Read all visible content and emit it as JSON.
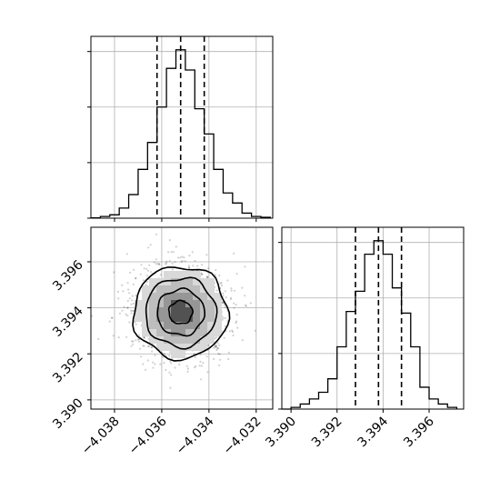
{
  "chart_data": {
    "type": "corner",
    "title": "",
    "grid": true,
    "parameters": [
      {
        "name": "",
        "xlim": [
          -4.039,
          -4.0313
        ],
        "quantiles": [
          -4.0362,
          -4.0352,
          -4.0342
        ]
      },
      {
        "name": "",
        "xlim": [
          3.3896,
          3.3975
        ],
        "quantiles": [
          3.3928,
          3.3938,
          3.3948
        ]
      }
    ],
    "x_ticks": [
      -4.038,
      -4.036,
      -4.034,
      -4.032
    ],
    "y_ticks_2d": [
      3.39,
      3.392,
      3.394,
      3.396
    ],
    "x2_ticks": [
      3.39,
      3.392,
      3.394,
      3.396
    ],
    "hist1": {
      "bin_edges": [
        -4.039,
        -4.0386,
        -4.0382,
        -4.0378,
        -4.0374,
        -4.037,
        -4.0366,
        -4.0362,
        -4.0358,
        -4.0354,
        -4.035,
        -4.0346,
        -4.0342,
        -4.0338,
        -4.0334,
        -4.033,
        -4.0326,
        -4.0322,
        -4.0318,
        -4.0314
      ],
      "values": [
        0.2,
        1,
        2,
        6,
        14,
        29,
        45,
        66,
        89,
        100,
        88,
        65,
        50,
        29,
        15,
        9,
        3,
        1,
        0.5
      ],
      "ylim": [
        0,
        108
      ],
      "yticks": [
        0,
        33,
        66,
        99
      ]
    },
    "hist2": {
      "bin_edges": [
        3.3896,
        3.39,
        3.3904,
        3.3908,
        3.3912,
        3.3916,
        3.392,
        3.3924,
        3.3928,
        3.3932,
        3.3936,
        3.394,
        3.3944,
        3.3948,
        3.3952,
        3.3956,
        3.396,
        3.3964,
        3.3968,
        3.3972
      ],
      "values": [
        0,
        1,
        3,
        6,
        10,
        18,
        37,
        58,
        70,
        92,
        100,
        92,
        72,
        57,
        37,
        13,
        6,
        3,
        1
      ],
      "ylim": [
        0,
        108
      ],
      "yticks": [
        0,
        33,
        66,
        99
      ]
    },
    "scatter2d": {
      "center": [
        -4.0352,
        3.3938
      ],
      "sigma": [
        0.001,
        0.001
      ],
      "contour_levels": [
        "0.5σ",
        "1σ",
        "1.5σ",
        "2σ"
      ]
    }
  }
}
